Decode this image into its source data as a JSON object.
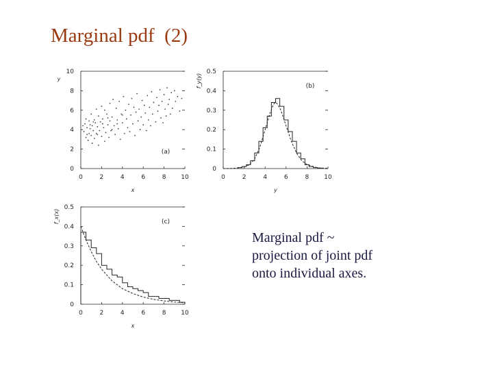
{
  "slide": {
    "title": "Marginal pdf  (2)",
    "caption_lines": [
      "Marginal pdf ~",
      "projection of joint pdf",
      "onto individual axes."
    ]
  },
  "colors": {
    "title": "#9a3a10",
    "text": "#1a1a40",
    "ink": "#222222"
  },
  "chart_data": [
    {
      "type": "scatter",
      "panel_label": "(a)",
      "xlabel": "x",
      "ylabel": "y",
      "xlim": [
        0,
        10
      ],
      "ylim": [
        0,
        10
      ],
      "xticks": [
        0,
        2,
        4,
        6,
        8,
        10
      ],
      "yticks": [
        0,
        2,
        4,
        6,
        8,
        10
      ],
      "points": [
        [
          0.3,
          3.8
        ],
        [
          0.4,
          4.6
        ],
        [
          0.5,
          3.2
        ],
        [
          0.5,
          5.1
        ],
        [
          0.6,
          4.2
        ],
        [
          0.7,
          2.9
        ],
        [
          0.8,
          3.6
        ],
        [
          0.8,
          4.9
        ],
        [
          0.9,
          4.1
        ],
        [
          1.0,
          3.4
        ],
        [
          1.0,
          5.6
        ],
        [
          1.1,
          2.6
        ],
        [
          1.1,
          4.4
        ],
        [
          1.2,
          3.9
        ],
        [
          1.3,
          5.0
        ],
        [
          1.3,
          3.1
        ],
        [
          1.4,
          4.7
        ],
        [
          1.5,
          6.1
        ],
        [
          1.5,
          3.6
        ],
        [
          1.6,
          4.3
        ],
        [
          1.7,
          2.4
        ],
        [
          1.7,
          5.4
        ],
        [
          1.8,
          3.9
        ],
        [
          1.9,
          4.8
        ],
        [
          2.0,
          6.4
        ],
        [
          2.0,
          3.3
        ],
        [
          2.1,
          5.1
        ],
        [
          2.2,
          4.2
        ],
        [
          2.3,
          2.8
        ],
        [
          2.3,
          6.0
        ],
        [
          2.4,
          3.7
        ],
        [
          2.5,
          5.6
        ],
        [
          2.6,
          4.5
        ],
        [
          2.7,
          3.2
        ],
        [
          2.8,
          6.7
        ],
        [
          2.8,
          4.9
        ],
        [
          2.9,
          3.9
        ],
        [
          3.0,
          5.3
        ],
        [
          3.1,
          7.1
        ],
        [
          3.2,
          4.4
        ],
        [
          3.3,
          3.5
        ],
        [
          3.4,
          6.2
        ],
        [
          3.5,
          5.0
        ],
        [
          3.6,
          4.1
        ],
        [
          3.7,
          6.9
        ],
        [
          3.8,
          3.0
        ],
        [
          3.9,
          5.6
        ],
        [
          4.0,
          4.7
        ],
        [
          4.1,
          7.4
        ],
        [
          4.2,
          3.6
        ],
        [
          4.3,
          6.0
        ],
        [
          4.4,
          5.1
        ],
        [
          4.5,
          4.2
        ],
        [
          4.6,
          6.6
        ],
        [
          4.7,
          3.8
        ],
        [
          4.8,
          5.5
        ],
        [
          4.9,
          7.2
        ],
        [
          5.0,
          4.6
        ],
        [
          5.1,
          6.3
        ],
        [
          5.2,
          3.4
        ],
        [
          5.3,
          5.8
        ],
        [
          5.4,
          7.7
        ],
        [
          5.5,
          4.9
        ],
        [
          5.6,
          6.1
        ],
        [
          5.7,
          4.0
        ],
        [
          5.8,
          5.3
        ],
        [
          5.9,
          7.0
        ],
        [
          6.0,
          4.5
        ],
        [
          6.1,
          6.5
        ],
        [
          6.2,
          5.7
        ],
        [
          6.3,
          3.9
        ],
        [
          6.4,
          7.5
        ],
        [
          6.5,
          5.0
        ],
        [
          6.6,
          6.3
        ],
        [
          6.7,
          4.4
        ],
        [
          6.8,
          7.9
        ],
        [
          6.9,
          5.6
        ],
        [
          7.0,
          6.8
        ],
        [
          7.2,
          4.8
        ],
        [
          7.3,
          7.3
        ],
        [
          7.4,
          5.9
        ],
        [
          7.5,
          6.5
        ],
        [
          7.6,
          8.1
        ],
        [
          7.7,
          5.2
        ],
        [
          7.8,
          6.9
        ],
        [
          7.9,
          4.7
        ],
        [
          8.0,
          7.6
        ],
        [
          8.1,
          6.1
        ],
        [
          8.2,
          5.4
        ],
        [
          8.3,
          8.3
        ],
        [
          8.4,
          6.6
        ],
        [
          8.5,
          7.1
        ],
        [
          8.6,
          5.6
        ],
        [
          8.7,
          7.8
        ],
        [
          8.8,
          6.2
        ],
        [
          9.0,
          8.0
        ],
        [
          9.1,
          6.9
        ],
        [
          9.3,
          7.4
        ],
        [
          9.5,
          5.9
        ],
        [
          9.7,
          7.2
        ],
        [
          0.2,
          4.4
        ],
        [
          0.6,
          3.5
        ],
        [
          0.9,
          4.5
        ],
        [
          1.2,
          4.8
        ],
        [
          1.6,
          3.5
        ],
        [
          2.1,
          4.6
        ],
        [
          2.6,
          5.2
        ],
        [
          3.0,
          4.0
        ],
        [
          3.5,
          4.6
        ],
        [
          4.0,
          5.5
        ]
      ]
    },
    {
      "type": "line",
      "panel_label": "(b)",
      "xlabel": "y",
      "ylabel": "f_y(y)",
      "xlim": [
        0,
        10
      ],
      "ylim": [
        0,
        0.5
      ],
      "xticks": [
        0,
        2,
        4,
        6,
        8,
        10
      ],
      "yticks": [
        0,
        0.1,
        0.2,
        0.3,
        0.4,
        0.5
      ],
      "histogram": {
        "bin_width": 0.4,
        "x_start": 1.4,
        "heights": [
          0.005,
          0.01,
          0.02,
          0.04,
          0.08,
          0.14,
          0.21,
          0.27,
          0.34,
          0.36,
          0.32,
          0.25,
          0.19,
          0.14,
          0.08,
          0.05,
          0.02,
          0.01,
          0.005,
          0.002
        ]
      },
      "curve_x": [
        0,
        1,
        2,
        2.5,
        3,
        3.5,
        4,
        4.5,
        4.8,
        5,
        5.2,
        5.5,
        6,
        6.5,
        7,
        7.5,
        8,
        9,
        10
      ],
      "curve_y": [
        0.0,
        0.001,
        0.008,
        0.02,
        0.05,
        0.11,
        0.2,
        0.29,
        0.33,
        0.34,
        0.33,
        0.3,
        0.22,
        0.14,
        0.08,
        0.04,
        0.02,
        0.004,
        0.001
      ]
    },
    {
      "type": "line",
      "panel_label": "(c)",
      "xlabel": "x",
      "ylabel": "f_x(x)",
      "xlim": [
        0,
        10
      ],
      "ylim": [
        0,
        0.5
      ],
      "xticks": [
        0,
        2,
        4,
        6,
        8,
        10
      ],
      "yticks": [
        0,
        0.1,
        0.2,
        0.3,
        0.4,
        0.5
      ],
      "histogram": {
        "bin_width": 0.5,
        "x_start": 0,
        "heights": [
          0.37,
          0.33,
          0.29,
          0.26,
          0.2,
          0.18,
          0.15,
          0.14,
          0.11,
          0.09,
          0.08,
          0.07,
          0.06,
          0.04,
          0.04,
          0.03,
          0.03,
          0.02,
          0.02,
          0.01
        ]
      },
      "curve_x": [
        0,
        0.5,
        1,
        1.5,
        2,
        2.5,
        3,
        3.5,
        4,
        5,
        6,
        7,
        8,
        9,
        10
      ],
      "curve_y": [
        0.4,
        0.33,
        0.27,
        0.22,
        0.18,
        0.15,
        0.12,
        0.1,
        0.08,
        0.055,
        0.037,
        0.025,
        0.017,
        0.011,
        0.008
      ]
    }
  ]
}
